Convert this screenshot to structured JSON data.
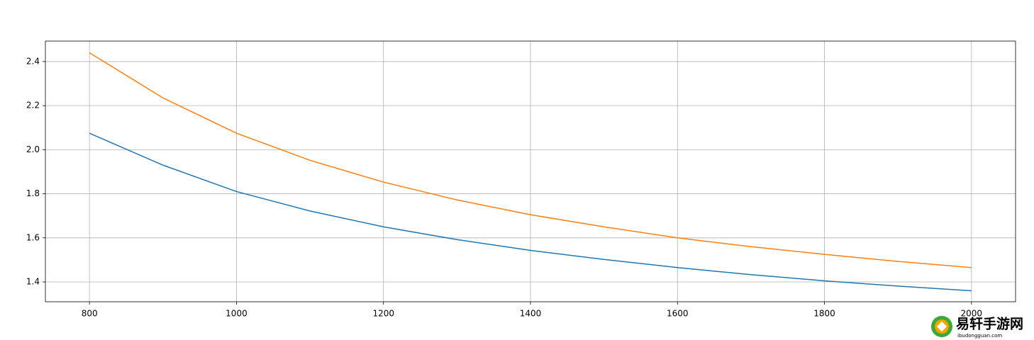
{
  "chart_data": {
    "type": "line",
    "x": [
      800,
      900,
      1000,
      1100,
      1200,
      1300,
      1400,
      1500,
      1600,
      1700,
      1800,
      1900,
      2000
    ],
    "series": [
      {
        "color": "#1f77b4",
        "values": [
          2.075,
          1.93,
          1.81,
          1.722,
          1.65,
          1.592,
          1.543,
          1.502,
          1.465,
          1.433,
          1.405,
          1.381,
          1.36
        ]
      },
      {
        "color": "#ff7f0e",
        "values": [
          2.44,
          2.235,
          2.075,
          1.952,
          1.853,
          1.772,
          1.705,
          1.65,
          1.6,
          1.56,
          1.525,
          1.493,
          1.465
        ]
      }
    ],
    "xlim": [
      740,
      2060
    ],
    "ylim": [
      1.31,
      2.493
    ],
    "xticks": [
      800,
      1000,
      1200,
      1400,
      1600,
      1800,
      2000
    ],
    "yticks": [
      1.4,
      1.6,
      1.8,
      {
        "value": 2,
        "label": "2.0"
      },
      2.2,
      2.4
    ],
    "grid": true
  },
  "watermark": {
    "name": "易轩手游网",
    "url": "ibudongguan.com"
  }
}
